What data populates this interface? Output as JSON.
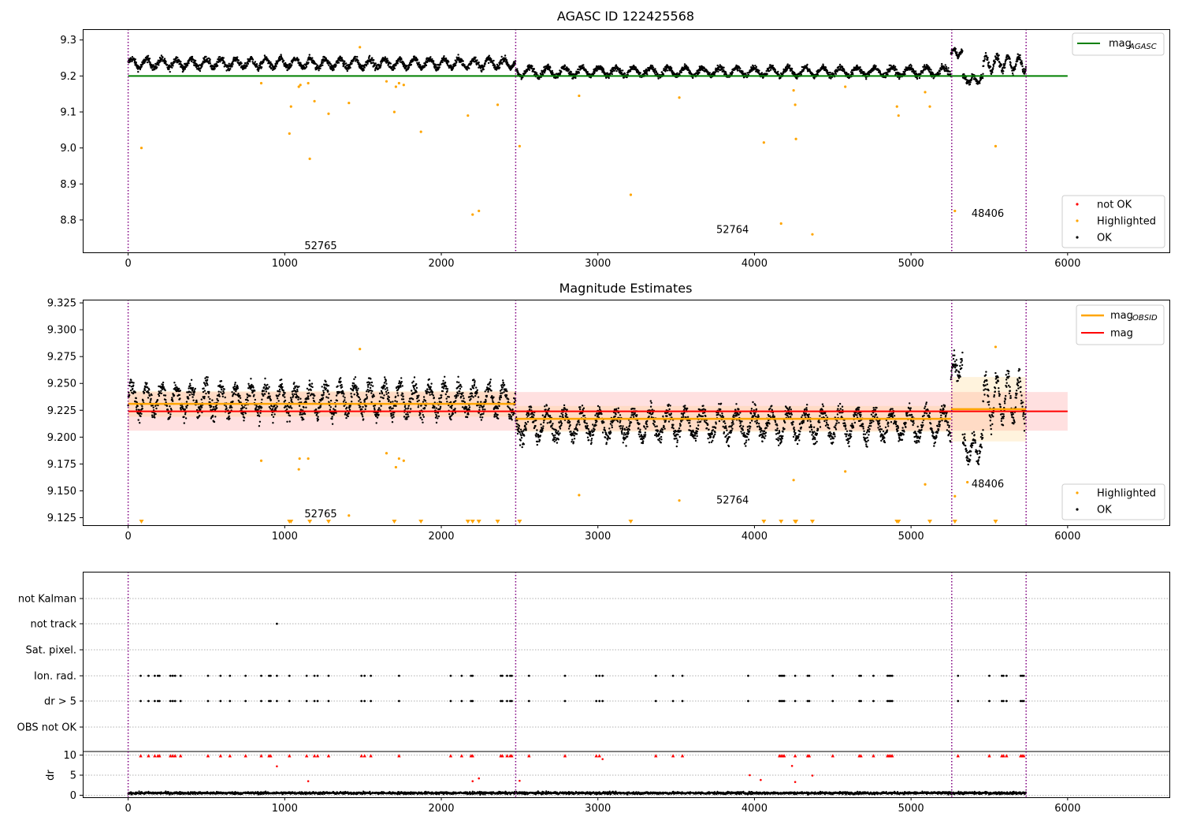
{
  "chart_data": [
    {
      "type": "scatter",
      "title": "AGASC ID 122425568",
      "xlim": [
        -290,
        6650
      ],
      "ylim": [
        8.71,
        9.33
      ],
      "xticks": [
        0,
        1000,
        2000,
        3000,
        4000,
        5000,
        6000
      ],
      "yticks": [
        8.8,
        8.9,
        9.0,
        9.1,
        9.2,
        9.3
      ],
      "ytick_labels": [
        "8.8",
        "8.9",
        "9.0",
        "9.1",
        "9.2",
        "9.3"
      ],
      "obsid_boundaries": [
        0,
        2475,
        5260,
        5735
      ],
      "annotations": [
        {
          "text": "52765",
          "x": 1230,
          "y": 8.73
        },
        {
          "text": "52764",
          "x": 3860,
          "y": 8.775
        },
        {
          "text": "48406",
          "x": 5490,
          "y": 8.82
        }
      ],
      "series": [
        {
          "name": "mag",
          "subscript": "AGASC",
          "kind": "line",
          "color": "#008000",
          "x": [
            0,
            6000
          ],
          "values": [
            9.2,
            9.2
          ]
        },
        {
          "name": "not OK",
          "kind": "points",
          "color": "#ff0000",
          "points": []
        },
        {
          "name": "Highlighted",
          "kind": "points",
          "color": "#ffa500",
          "points": [
            [
              85,
              9.0
            ],
            [
              850,
              9.18
            ],
            [
              1030,
              9.04
            ],
            [
              1040,
              9.115
            ],
            [
              1090,
              9.17
            ],
            [
              1100,
              9.175
            ],
            [
              1150,
              9.18
            ],
            [
              1160,
              8.97
            ],
            [
              1190,
              9.13
            ],
            [
              1280,
              9.095
            ],
            [
              1410,
              9.125
            ],
            [
              1480,
              9.28
            ],
            [
              1650,
              9.185
            ],
            [
              1700,
              9.1
            ],
            [
              1710,
              9.17
            ],
            [
              1730,
              9.18
            ],
            [
              1760,
              9.175
            ],
            [
              1870,
              9.045
            ],
            [
              2170,
              9.09
            ],
            [
              2200,
              8.815
            ],
            [
              2240,
              8.825
            ],
            [
              2360,
              9.12
            ],
            [
              2500,
              9.005
            ],
            [
              2880,
              9.145
            ],
            [
              3210,
              8.87
            ],
            [
              3520,
              9.14
            ],
            [
              4060,
              9.015
            ],
            [
              4170,
              8.79
            ],
            [
              4250,
              9.16
            ],
            [
              4260,
              9.12
            ],
            [
              4265,
              9.025
            ],
            [
              4370,
              8.76
            ],
            [
              4580,
              9.17
            ],
            [
              4910,
              9.115
            ],
            [
              4920,
              9.09
            ],
            [
              5090,
              9.155
            ],
            [
              5120,
              9.115
            ],
            [
              5280,
              8.825
            ],
            [
              5540,
              9.005
            ]
          ]
        },
        {
          "name": "OK",
          "kind": "band",
          "color": "#000000",
          "segments": [
            {
              "x0": 0,
              "x1": 2475,
              "center": 9.235,
              "amp": 0.013,
              "noise": 0.009,
              "period": 95
            },
            {
              "x0": 2475,
              "x1": 5255,
              "center": 9.212,
              "amp": 0.012,
              "noise": 0.008,
              "period": 110
            },
            {
              "x0": 5255,
              "x1": 5330,
              "center": 9.265,
              "amp": 0.008,
              "noise": 0.008,
              "period": 60
            },
            {
              "x0": 5330,
              "x1": 5460,
              "center": 9.19,
              "amp": 0.01,
              "noise": 0.008,
              "period": 60
            },
            {
              "x0": 5460,
              "x1": 5735,
              "center": 9.235,
              "amp": 0.02,
              "noise": 0.01,
              "period": 70
            }
          ]
        }
      ],
      "legend_top": "top-right",
      "legend_bottom": "bottom-right"
    },
    {
      "type": "scatter",
      "title": "Magnitude Estimates",
      "xlim": [
        -290,
        6650
      ],
      "ylim": [
        9.118,
        9.328
      ],
      "xticks": [
        0,
        1000,
        2000,
        3000,
        4000,
        5000,
        6000
      ],
      "yticks": [
        9.125,
        9.15,
        9.175,
        9.2,
        9.225,
        9.25,
        9.275,
        9.3,
        9.325
      ],
      "ytick_labels": [
        "9.125",
        "9.150",
        "9.175",
        "9.200",
        "9.225",
        "9.250",
        "9.275",
        "9.300",
        "9.325"
      ],
      "obsid_boundaries": [
        0,
        2475,
        5260,
        5735
      ],
      "annotations": [
        {
          "text": "52765",
          "x": 1230,
          "y": 9.129
        },
        {
          "text": "52764",
          "x": 3860,
          "y": 9.142
        },
        {
          "text": "48406",
          "x": 5490,
          "y": 9.157
        }
      ],
      "mag": {
        "value": 9.224,
        "err": 0.018,
        "x": [
          0,
          6000
        ]
      },
      "obsid_mags": [
        {
          "x0": 0,
          "x1": 2475,
          "value": 9.231,
          "err": 0.012
        },
        {
          "x0": 2475,
          "x1": 5255,
          "value": 9.217,
          "err": 0.012
        },
        {
          "x0": 5255,
          "x1": 5735,
          "value": 9.226,
          "err": 0.03
        }
      ],
      "series": [
        {
          "name": "mag",
          "subscript": "OBSID",
          "kind": "line",
          "color": "#ffa500"
        },
        {
          "name": "mag",
          "kind": "line",
          "color": "#ff0000"
        },
        {
          "name": "Highlighted",
          "kind": "points",
          "color": "#ffa500",
          "points": [
            [
              850,
              9.178
            ],
            [
              1090,
              9.17
            ],
            [
              1095,
              9.18
            ],
            [
              1150,
              9.18
            ],
            [
              1410,
              9.127
            ],
            [
              1480,
              9.282
            ],
            [
              1650,
              9.185
            ],
            [
              1710,
              9.172
            ],
            [
              1730,
              9.18
            ],
            [
              1760,
              9.178
            ],
            [
              2880,
              9.146
            ],
            [
              3520,
              9.141
            ],
            [
              4250,
              9.16
            ],
            [
              4580,
              9.168
            ],
            [
              5090,
              9.156
            ],
            [
              5280,
              9.145
            ],
            [
              5360,
              9.158
            ],
            [
              5540,
              9.284
            ]
          ]
        },
        {
          "name": "OK",
          "kind": "band",
          "color": "#000000"
        }
      ],
      "below_range_markers": [
        85,
        1030,
        1040,
        1160,
        1280,
        1700,
        1870,
        2170,
        2200,
        2240,
        2360,
        2500,
        3210,
        4060,
        4170,
        4260,
        4265,
        4370,
        4910,
        4920,
        5120,
        5280,
        5540
      ],
      "legend_top": "top-right",
      "legend_bottom": "bottom-right"
    },
    {
      "type": "scatter",
      "xlim": [
        -290,
        6650
      ],
      "xticks": [
        0,
        1000,
        2000,
        3000,
        4000,
        5000,
        6000
      ],
      "flag_rows": [
        "not Kalman",
        "not track",
        "Sat. pixel.",
        "Ion. rad.",
        "dr > 5",
        "OBS not OK"
      ],
      "flags": {
        "not Kalman": [],
        "not track": [
          950
        ],
        "Sat. pixel.": [],
        "Ion. rad.": [
          80,
          130,
          170,
          190,
          200,
          270,
          285,
          300,
          335,
          510,
          590,
          650,
          750,
          850,
          900,
          910,
          950,
          1030,
          1140,
          1190,
          1210,
          1280,
          1490,
          1510,
          1550,
          1730,
          2060,
          2130,
          2190,
          2200,
          2380,
          2390,
          2420,
          2440,
          2450,
          2560,
          2790,
          2990,
          3010,
          3030,
          3370,
          3480,
          3540,
          3960,
          4160,
          4170,
          4180,
          4190,
          4260,
          4340,
          4350,
          4500,
          4670,
          4680,
          4760,
          4850,
          4860,
          4870,
          4880,
          5300,
          5500,
          5580,
          5590,
          5610,
          5700,
          5710,
          5720
        ],
        "dr > 5": [
          80,
          130,
          170,
          190,
          200,
          270,
          285,
          300,
          335,
          510,
          590,
          650,
          750,
          850,
          900,
          910,
          950,
          1030,
          1140,
          1190,
          1210,
          1280,
          1490,
          1510,
          1550,
          1730,
          2060,
          2130,
          2190,
          2200,
          2380,
          2390,
          2420,
          2440,
          2450,
          2560,
          2790,
          2990,
          3010,
          3030,
          3370,
          3480,
          3540,
          3960,
          4160,
          4170,
          4180,
          4190,
          4260,
          4340,
          4350,
          4500,
          4670,
          4680,
          4760,
          4850,
          4860,
          4870,
          4880,
          5300,
          5500,
          5580,
          5590,
          5610,
          5700,
          5710,
          5720
        ],
        "OBS not OK": []
      },
      "dr_ylabel": "dr",
      "dr_ylim": [
        -0.5,
        10.5
      ],
      "dr_yticks": [
        0,
        5,
        10
      ],
      "dr_clipped": [
        80,
        130,
        170,
        190,
        200,
        270,
        285,
        300,
        335,
        510,
        590,
        650,
        750,
        850,
        900,
        910,
        1030,
        1140,
        1190,
        1210,
        1280,
        1490,
        1510,
        1550,
        1730,
        2060,
        2130,
        2190,
        2200,
        2380,
        2390,
        2420,
        2440,
        2450,
        2560,
        2790,
        2990,
        3010,
        3370,
        3480,
        3540,
        4160,
        4170,
        4180,
        4190,
        4260,
        4340,
        4350,
        4500,
        4670,
        4680,
        4760,
        4850,
        4860,
        4870,
        4880,
        5300,
        5500,
        5580,
        5590,
        5610,
        5700,
        5710,
        5720
      ],
      "dr_red_points": [
        [
          950,
          7.2
        ],
        [
          1150,
          3.5
        ],
        [
          2200,
          3.5
        ],
        [
          2240,
          4.2
        ],
        [
          2500,
          3.6
        ],
        [
          3030,
          9.0
        ],
        [
          3970,
          5.0
        ],
        [
          4040,
          3.8
        ],
        [
          4240,
          7.3
        ],
        [
          4260,
          3.3
        ],
        [
          4370,
          4.9
        ]
      ],
      "dr_noise": {
        "mean": 0.55,
        "spread": 0.3
      }
    }
  ]
}
